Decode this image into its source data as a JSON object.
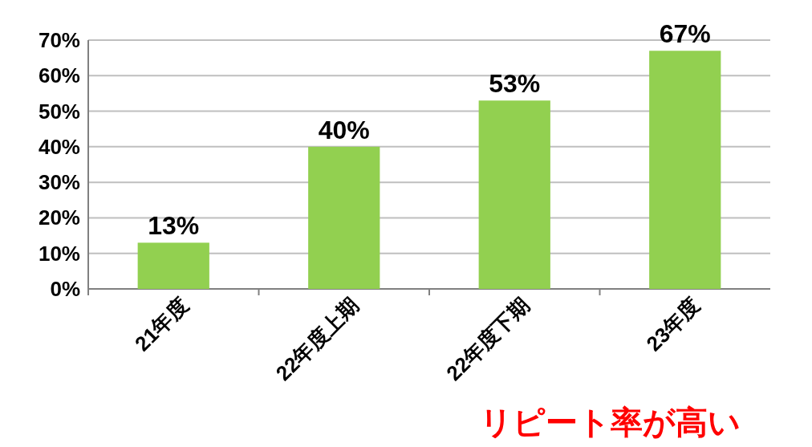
{
  "chart_data": {
    "type": "bar",
    "categories": [
      "21年度",
      "22年度上期",
      "22年度下期",
      "23年度"
    ],
    "values": [
      13,
      40,
      53,
      67
    ],
    "color": "#92d050",
    "grid": "y",
    "ylim": [
      0,
      70
    ],
    "yticks": [
      {
        "value": 0,
        "label": "0%"
      },
      {
        "value": 10,
        "label": "10%"
      },
      {
        "value": 20,
        "label": "20%"
      },
      {
        "value": 30,
        "label": "30%"
      },
      {
        "value": 40,
        "label": "40%"
      },
      {
        "value": 50,
        "label": "50%"
      },
      {
        "value": 60,
        "label": "60%"
      },
      {
        "value": 70,
        "label": "70%"
      }
    ],
    "value_labels": [
      "13%",
      "40%",
      "53%",
      "67%"
    ],
    "annotations": [
      "リピート率が高い"
    ]
  }
}
